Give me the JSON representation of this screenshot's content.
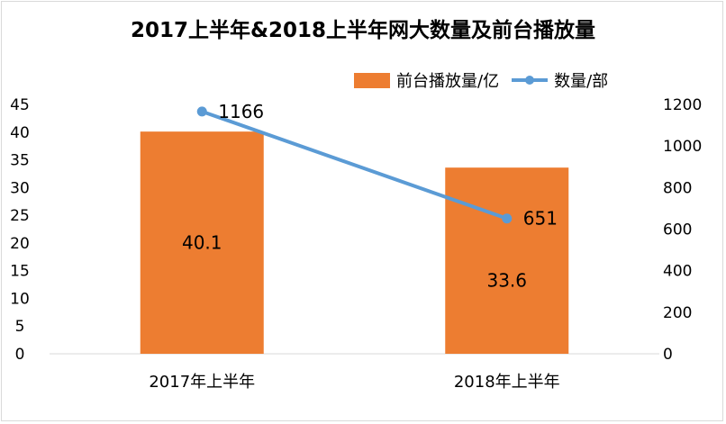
{
  "chart_data": {
    "type": "bar",
    "title": "2017上半年&2018上半年网大数量及前台播放量",
    "categories": [
      "2017年上半年",
      "2018年上半年"
    ],
    "series": [
      {
        "name": "前台播放量/亿",
        "type": "bar",
        "axis": "left",
        "values": [
          40.1,
          33.6
        ],
        "color": "#ed7d31"
      },
      {
        "name": "数量/部",
        "type": "line",
        "axis": "right",
        "values": [
          1166,
          651
        ],
        "color": "#5b9bd5"
      }
    ],
    "y_left": {
      "min": 0,
      "max": 45,
      "step": 5,
      "ticks": [
        "0",
        "5",
        "10",
        "15",
        "20",
        "25",
        "30",
        "35",
        "40",
        "45"
      ]
    },
    "y_right": {
      "min": 0,
      "max": 1200,
      "step": 200,
      "ticks": [
        "0",
        "200",
        "400",
        "600",
        "800",
        "1000",
        "1200"
      ]
    },
    "data_labels": {
      "bar": [
        "40.1",
        "33.6"
      ],
      "line": [
        "1166",
        "651"
      ]
    },
    "grid": false,
    "legend_position": "top-right"
  }
}
